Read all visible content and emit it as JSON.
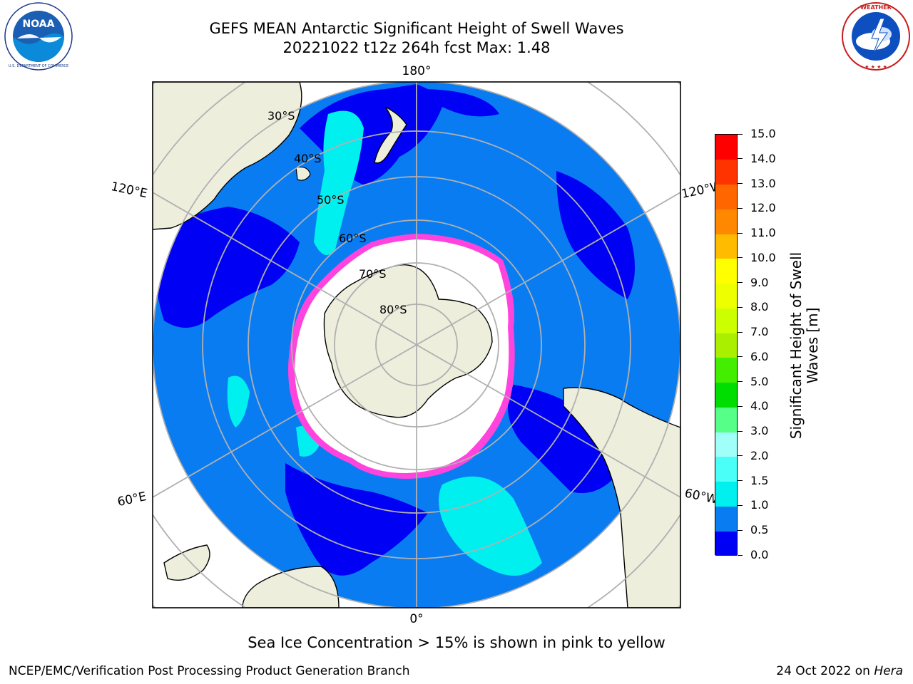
{
  "header": {
    "title_line1": "GEFS MEAN Antarctic Significant Height of Swell Waves",
    "title_line2": "20221022 t12z 264h fcst   Max: 1.48"
  },
  "logos": {
    "left": {
      "name": "noaa-logo",
      "text": "NOAA",
      "ring_text": "NATIONAL OCEANIC AND ATMOSPHERIC ADMINISTRATION · U.S. DEPARTMENT OF COMMERCE"
    },
    "right": {
      "name": "nws-logo",
      "ring_text": "NATIONAL WEATHER SERVICE"
    }
  },
  "map": {
    "projection": "South Polar Stereographic",
    "longitude_labels": {
      "top": "180°",
      "bottom": "0°",
      "upper_left": "120°E",
      "upper_right": "120°W",
      "lower_left": "60°E",
      "lower_right": "60°W"
    },
    "latitude_labels": [
      "30°S",
      "40°S",
      "50°S",
      "60°S",
      "70°S",
      "80°S"
    ],
    "colors": {
      "land": "#eeeedd",
      "ocean_base": "#0a7cf2",
      "low_swell": "#0000f5",
      "swell_mid": "#00f0f0",
      "ice": "#ffffff",
      "ice_edge": "#ff44dd",
      "grid": "#b0b0b0"
    }
  },
  "colorbar": {
    "title": "Significant Height of Swell Waves [m]",
    "ticks": [
      "0.0",
      "0.5",
      "1.0",
      "1.5",
      "2.0",
      "3.0",
      "4.0",
      "5.0",
      "6.0",
      "7.0",
      "8.0",
      "9.0",
      "10.0",
      "11.0",
      "12.0",
      "13.0",
      "14.0",
      "15.0"
    ],
    "colors": [
      "#0000f5",
      "#0a7cf2",
      "#00f0f0",
      "#4afff7",
      "#a0fff9",
      "#55ff88",
      "#00dd00",
      "#44ee00",
      "#aaee00",
      "#ccff00",
      "#eeff00",
      "#ffff00",
      "#ffbb00",
      "#ff8800",
      "#ff6600",
      "#ff3300",
      "#ff0000"
    ]
  },
  "footer": {
    "ice_note": "Sea Ice Concentration > 15% is shown in pink to yellow",
    "credit": "NCEP/EMC/Verification Post Processing Product Generation Branch",
    "date_prefix": "24 Oct 2022 on ",
    "machine": "Hera"
  }
}
